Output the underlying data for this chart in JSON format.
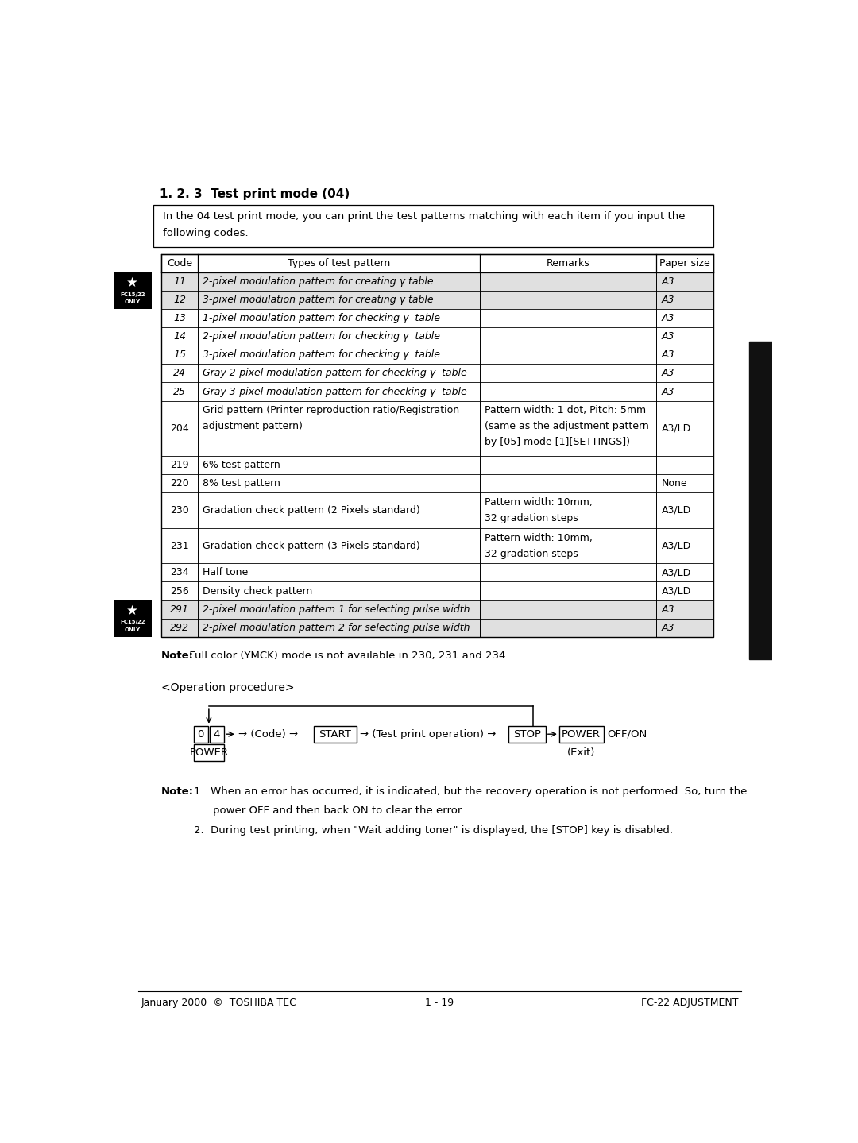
{
  "title": "1. 2. 3  Test print mode (04)",
  "intro_text_line1": "In the 04 test print mode, you can print the test patterns matching with each item if you input the",
  "intro_text_line2": "following codes.",
  "table_headers": [
    "Code",
    "Types of test pattern",
    "Remarks",
    "Paper size"
  ],
  "table_rows": [
    {
      "code": "11",
      "pattern": "2-pixel modulation pattern for creating γ table",
      "remarks": "",
      "paper": "A3",
      "italic": true,
      "shaded": true
    },
    {
      "code": "12",
      "pattern": "3-pixel modulation pattern for creating γ table",
      "remarks": "",
      "paper": "A3",
      "italic": true,
      "shaded": true
    },
    {
      "code": "13",
      "pattern": "1-pixel modulation pattern for checking γ  table",
      "remarks": "",
      "paper": "A3",
      "italic": true,
      "shaded": false
    },
    {
      "code": "14",
      "pattern": "2-pixel modulation pattern for checking γ  table",
      "remarks": "",
      "paper": "A3",
      "italic": true,
      "shaded": false
    },
    {
      "code": "15",
      "pattern": "3-pixel modulation pattern for checking γ  table",
      "remarks": "",
      "paper": "A3",
      "italic": true,
      "shaded": false
    },
    {
      "code": "24",
      "pattern": "Gray 2-pixel modulation pattern for checking γ  table",
      "remarks": "",
      "paper": "A3",
      "italic": true,
      "shaded": false
    },
    {
      "code": "25",
      "pattern": "Gray 3-pixel modulation pattern for checking γ  table",
      "remarks": "",
      "paper": "A3",
      "italic": true,
      "shaded": false
    },
    {
      "code": "204",
      "pattern": "Grid pattern (Printer reproduction ratio/Registration\nadjustment pattern)",
      "remarks": "Pattern width: 1 dot, Pitch: 5mm\n(same as the adjustment pattern\nby [05] mode [1][SETTINGS])",
      "paper": "A3/LD",
      "italic": false,
      "shaded": false
    },
    {
      "code": "219",
      "pattern": "6% test pattern",
      "remarks": "",
      "paper": "",
      "italic": false,
      "shaded": false
    },
    {
      "code": "220",
      "pattern": "8% test pattern",
      "remarks": "",
      "paper": "None",
      "italic": false,
      "shaded": false
    },
    {
      "code": "230",
      "pattern": "Gradation check pattern (2 Pixels standard)",
      "remarks": "Pattern width: 10mm,\n32 gradation steps",
      "paper": "A3/LD",
      "italic": false,
      "shaded": false
    },
    {
      "code": "231",
      "pattern": "Gradation check pattern (3 Pixels standard)",
      "remarks": "Pattern width: 10mm,\n32 gradation steps",
      "paper": "A3/LD",
      "italic": false,
      "shaded": false
    },
    {
      "code": "234",
      "pattern": "Half tone",
      "remarks": "",
      "paper": "A3/LD",
      "italic": false,
      "shaded": false
    },
    {
      "code": "256",
      "pattern": "Density check pattern",
      "remarks": "",
      "paper": "A3/LD",
      "italic": false,
      "shaded": false
    },
    {
      "code": "291",
      "pattern": "2-pixel modulation pattern 1 for selecting pulse width",
      "remarks": "",
      "paper": "A3",
      "italic": true,
      "shaded": true
    },
    {
      "code": "292",
      "pattern": "2-pixel modulation pattern 2 for selecting pulse width",
      "remarks": "",
      "paper": "A3",
      "italic": true,
      "shaded": true
    }
  ],
  "note1_bold": "Note:",
  "note1_rest": " Full color (YMCK) mode is not available in 230, 231 and 234.",
  "op_header": "<Operation procedure>",
  "footer_left": "January 2000  ©  TOSHIBA TEC",
  "footer_center": "1 - 19",
  "footer_right": "FC-22 ADJUSTMENT",
  "bg_color": "#ffffff",
  "shaded_color": "#e0e0e0",
  "sidebar_color": "#111111"
}
